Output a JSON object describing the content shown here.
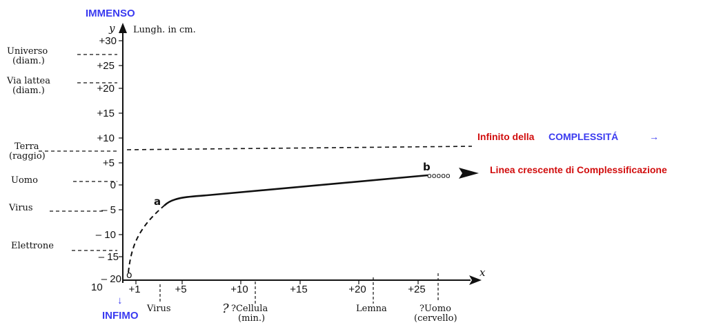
{
  "colors": {
    "ink": "#111111",
    "blue_annotation": "#3a3af0",
    "red_annotation": "#d10d0d"
  },
  "annotations": {
    "top": "IMMENSO",
    "bottom": "INFIMO",
    "bottom_arrow": "↓",
    "infinity_red": "Infinito della",
    "infinity_blue": "COMPLESSITÁ",
    "infinity_arrow": "→",
    "growth_line": "Linea crescente di Complessificazione"
  },
  "axes": {
    "y_symbol": "y",
    "y_label": "Lungh. in cm.",
    "x_symbol": "x",
    "origin_left": "10",
    "y_ticks": [
      "+30",
      "+25",
      "+20",
      "+15",
      "+10",
      "+5",
      "0",
      "– 5",
      "– 10",
      "– 15",
      "– 20"
    ],
    "x_ticks": [
      "+1",
      "+5",
      "+10",
      "+15",
      "+20",
      "+25"
    ]
  },
  "left_labels": {
    "universo": [
      "Universo",
      "(diam.)"
    ],
    "via_lattea": [
      "Via lattea",
      "(diam.)"
    ],
    "terra": [
      "Terra",
      "(raggio)"
    ],
    "uomo": "Uomo",
    "virus": "Virus",
    "elettrone": "Elettrone"
  },
  "bottom_labels": {
    "virus": "Virus",
    "question_mark": "?",
    "cellula": [
      "?Cellula",
      "(min.)"
    ],
    "lemna": "Lemna",
    "uomo": [
      "?Uomo",
      "(cervello)"
    ]
  },
  "curve_points": {
    "origin": "o",
    "a": "a",
    "b": "b",
    "dots": "ooooo"
  }
}
